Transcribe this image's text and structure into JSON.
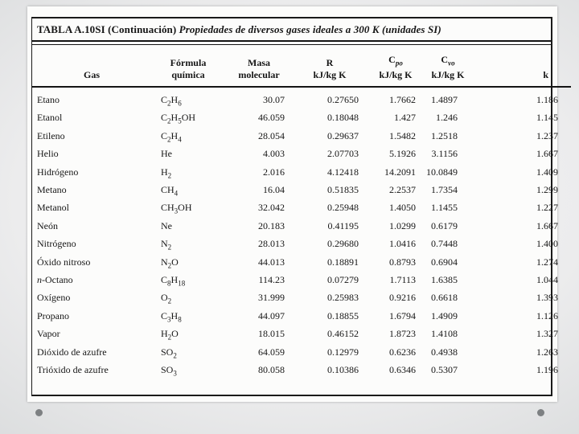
{
  "slide": {
    "background_outer": "#b8bbbd",
    "background_inner": "#f6f6f6",
    "paper_color": "#fcfcfb",
    "ink_color": "#161616",
    "footer_dot_color": "#7d8082"
  },
  "table": {
    "title": "TABLA A.10SI (Continuación)",
    "subtitle": "Propiedades de diversos gases ideales a 300 K (unidades SI)",
    "columns": [
      {
        "id": "gas",
        "top": "",
        "sub": "",
        "bottom": "Gas"
      },
      {
        "id": "formula",
        "top": "Fórmula",
        "sub": "",
        "bottom": "química"
      },
      {
        "id": "masa",
        "top": "Masa",
        "sub": "",
        "bottom": "molecular"
      },
      {
        "id": "r",
        "top": "R",
        "sub": "",
        "bottom": "kJ/kg K"
      },
      {
        "id": "cpo",
        "top": "C",
        "sub": "po",
        "bottom": "kJ/kg K"
      },
      {
        "id": "cvo",
        "top": "C",
        "sub": "vo",
        "bottom": "kJ/kg K"
      },
      {
        "id": "k",
        "top": "",
        "sub": "",
        "bottom": "k"
      }
    ],
    "rows": [
      {
        "gas": "Etano",
        "formula": "C2H6",
        "masa": "30.07",
        "r": "0.27650",
        "cpo": "1.7662",
        "cvo": "1.4897",
        "k": "1.186"
      },
      {
        "gas": "Etanol",
        "formula": "C2H5OH",
        "masa": "46.059",
        "r": "0.18048",
        "cpo": "1.427",
        "cvo": "1.246",
        "k": "1.145"
      },
      {
        "gas": "Etileno",
        "formula": "C2H4",
        "masa": "28.054",
        "r": "0.29637",
        "cpo": "1.5482",
        "cvo": "1.2518",
        "k": "1.237"
      },
      {
        "gas": "Helio",
        "formula": "He",
        "masa": "4.003",
        "r": "2.07703",
        "cpo": "5.1926",
        "cvo": "3.1156",
        "k": "1.667"
      },
      {
        "gas": "Hidrógeno",
        "formula": "H2",
        "masa": "2.016",
        "r": "4.12418",
        "cpo": "14.2091",
        "cvo": "10.0849",
        "k": "1.409"
      },
      {
        "gas": "Metano",
        "formula": "CH4",
        "masa": "16.04",
        "r": "0.51835",
        "cpo": "2.2537",
        "cvo": "1.7354",
        "k": "1.299"
      },
      {
        "gas": "Metanol",
        "formula": "CH3OH",
        "masa": "32.042",
        "r": "0.25948",
        "cpo": "1.4050",
        "cvo": "1.1455",
        "k": "1.227"
      },
      {
        "gas": "Neón",
        "formula": "Ne",
        "masa": "20.183",
        "r": "0.41195",
        "cpo": "1.0299",
        "cvo": "0.6179",
        "k": "1.667"
      },
      {
        "gas": "Nitrógeno",
        "formula": "N2",
        "masa": "28.013",
        "r": "0.29680",
        "cpo": "1.0416",
        "cvo": "0.7448",
        "k": "1.400"
      },
      {
        "gas": "Óxido nitroso",
        "formula": "N2O",
        "masa": "44.013",
        "r": "0.18891",
        "cpo": "0.8793",
        "cvo": "0.6904",
        "k": "1.274"
      },
      {
        "gas": "n-Octano",
        "formula": "C8H18",
        "masa": "114.23",
        "r": "0.07279",
        "cpo": "1.7113",
        "cvo": "1.6385",
        "k": "1.044"
      },
      {
        "gas": "Oxígeno",
        "formula": "O2",
        "masa": "31.999",
        "r": "0.25983",
        "cpo": "0.9216",
        "cvo": "0.6618",
        "k": "1.393"
      },
      {
        "gas": "Propano",
        "formula": "C3H8",
        "masa": "44.097",
        "r": "0.18855",
        "cpo": "1.6794",
        "cvo": "1.4909",
        "k": "1.126"
      },
      {
        "gas": "Vapor",
        "formula": "H2O",
        "masa": "18.015",
        "r": "0.46152",
        "cpo": "1.8723",
        "cvo": "1.4108",
        "k": "1.327"
      },
      {
        "gas": "Dióxido de azufre",
        "formula": "SO2",
        "masa": "64.059",
        "r": "0.12979",
        "cpo": "0.6236",
        "cvo": "0.4938",
        "k": "1.263"
      },
      {
        "gas": "Trióxido de azufre",
        "formula": "SO3",
        "masa": "80.058",
        "r": "0.10386",
        "cpo": "0.6346",
        "cvo": "0.5307",
        "k": "1.196"
      }
    ]
  }
}
